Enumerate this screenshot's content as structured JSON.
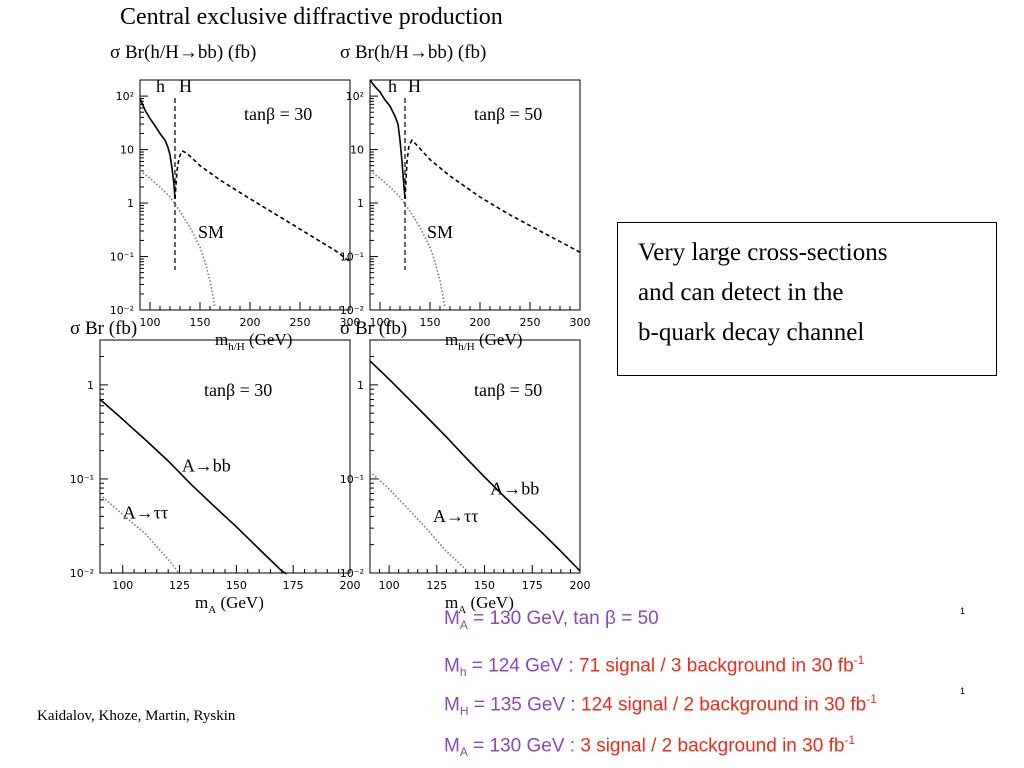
{
  "title": "Central exclusive diffractive production",
  "colors": {
    "axis": "#000000",
    "dotted": "#777777",
    "purple": "#8a48b8",
    "red": "#ee2a1a"
  },
  "note_box": {
    "lines": [
      "Very large cross-sections",
      "and can detect in the",
      "b-quark decay channel"
    ]
  },
  "authors": "Kaidalov, Khoze, Martin, Ryskin",
  "page_number": "1",
  "results": [
    {
      "sym": "M",
      "sub": "A",
      "purple_text": " = 130 GeV, tan β = 50",
      "red_text": "",
      "sup": ""
    },
    {
      "sym": "M",
      "sub": "h",
      "purple_text": " = 124 GeV : ",
      "red_text": "71 signal / 3 background in 30 fb",
      "sup": "-1"
    },
    {
      "sym": "M",
      "sub": "H",
      "purple_text": " = 135 GeV : ",
      "red_text": "124 signal / 2 background in 30 fb",
      "sup": "-1"
    },
    {
      "sym": "M",
      "sub": "A",
      "purple_text": " = 130 GeV : ",
      "red_text": "3 signal / 2 background in 30 fb",
      "sup": "-1"
    }
  ],
  "chart_data": [
    {
      "type": "line",
      "title": "σ Br(h/H→bb)  (fb)",
      "annotation": "tanβ = 30",
      "xlabel": {
        "main": "m",
        "sub": "h/H",
        "unit": "  (GeV)"
      },
      "xlim": [
        90,
        300
      ],
      "ylim": [
        0.01,
        200
      ],
      "yscale": "log",
      "xticks": [
        {
          "v": 100,
          "label": "100"
        },
        {
          "v": 150,
          "label": "150"
        },
        {
          "v": 200,
          "label": "200"
        },
        {
          "v": 250,
          "label": "250"
        },
        {
          "v": 300,
          "label": "300"
        }
      ],
      "yticks": [
        {
          "v": 100,
          "label": "10²"
        },
        {
          "v": 10,
          "label": "10"
        },
        {
          "v": 1,
          "label": "1"
        },
        {
          "v": 0.1,
          "label": "10⁻¹"
        },
        {
          "v": 0.01,
          "label": "10⁻²"
        }
      ],
      "vline": {
        "x": 125,
        "style": "dashed"
      },
      "labels": [
        {
          "text": "h",
          "x": 106,
          "y": 120
        },
        {
          "text": "H",
          "x": 129,
          "y": 120
        },
        {
          "text": "SM",
          "x": 148,
          "y": 0.22
        }
      ],
      "series": [
        {
          "name": "h",
          "style": "solid",
          "points": [
            [
              90,
              90
            ],
            [
              95,
              55
            ],
            [
              100,
              38
            ],
            [
              105,
              28
            ],
            [
              110,
              20
            ],
            [
              115,
              15
            ],
            [
              118,
              11
            ],
            [
              120,
              8
            ],
            [
              122,
              4.5
            ],
            [
              124,
              2.2
            ],
            [
              125,
              1.2
            ]
          ]
        },
        {
          "name": "H",
          "style": "dashed",
          "points": [
            [
              125,
              1.2
            ],
            [
              127,
              4
            ],
            [
              129,
              7
            ],
            [
              132,
              9.5
            ],
            [
              137,
              8.5
            ],
            [
              150,
              5
            ],
            [
              170,
              2.7
            ],
            [
              200,
              1.2
            ],
            [
              230,
              0.55
            ],
            [
              260,
              0.25
            ],
            [
              285,
              0.13
            ],
            [
              300,
              0.08
            ]
          ]
        },
        {
          "name": "SM",
          "style": "dotted",
          "points": [
            [
              90,
              4
            ],
            [
              100,
              2.9
            ],
            [
              110,
              2.0
            ],
            [
              120,
              1.3
            ],
            [
              130,
              0.7
            ],
            [
              140,
              0.35
            ],
            [
              150,
              0.15
            ],
            [
              155,
              0.08
            ],
            [
              160,
              0.035
            ],
            [
              163,
              0.018
            ],
            [
              165,
              0.011
            ]
          ]
        }
      ]
    },
    {
      "type": "line",
      "title": "σ Br(h/H→bb)  (fb)",
      "annotation": "tanβ = 50",
      "xlabel": {
        "main": "m",
        "sub": "h/H",
        "unit": "  (GeV)"
      },
      "xlim": [
        90,
        300
      ],
      "ylim": [
        0.01,
        200
      ],
      "yscale": "log",
      "xticks": [
        {
          "v": 100,
          "label": "100"
        },
        {
          "v": 150,
          "label": "150"
        },
        {
          "v": 200,
          "label": "200"
        },
        {
          "v": 250,
          "label": "250"
        },
        {
          "v": 300,
          "label": "300"
        }
      ],
      "yticks": [
        {
          "v": 100,
          "label": "10²"
        },
        {
          "v": 10,
          "label": "10"
        },
        {
          "v": 1,
          "label": "1"
        },
        {
          "v": 0.1,
          "label": "10⁻¹"
        },
        {
          "v": 0.01,
          "label": "10⁻²"
        }
      ],
      "vline": {
        "x": 125,
        "style": "dashed"
      },
      "labels": [
        {
          "text": "h",
          "x": 108,
          "y": 120
        },
        {
          "text": "H",
          "x": 128,
          "y": 120
        },
        {
          "text": "SM",
          "x": 147,
          "y": 0.22
        }
      ],
      "series": [
        {
          "name": "h",
          "style": "solid",
          "points": [
            [
              90,
              200
            ],
            [
              95,
              150
            ],
            [
              100,
              120
            ],
            [
              105,
              85
            ],
            [
              110,
              65
            ],
            [
              115,
              42
            ],
            [
              118,
              30
            ],
            [
              120,
              15
            ],
            [
              122,
              6
            ],
            [
              124,
              2
            ],
            [
              125,
              1.2
            ]
          ]
        },
        {
          "name": "H",
          "style": "dashed",
          "points": [
            [
              125,
              1.2
            ],
            [
              127,
              6
            ],
            [
              129,
              12
            ],
            [
              132,
              15
            ],
            [
              137,
              12
            ],
            [
              150,
              6.5
            ],
            [
              170,
              3.2
            ],
            [
              200,
              1.3
            ],
            [
              230,
              0.6
            ],
            [
              260,
              0.3
            ],
            [
              285,
              0.17
            ],
            [
              300,
              0.12
            ]
          ]
        },
        {
          "name": "SM",
          "style": "dotted",
          "points": [
            [
              90,
              4
            ],
            [
              100,
              2.9
            ],
            [
              110,
              2.0
            ],
            [
              120,
              1.3
            ],
            [
              130,
              0.7
            ],
            [
              140,
              0.35
            ],
            [
              150,
              0.15
            ],
            [
              155,
              0.08
            ],
            [
              160,
              0.035
            ],
            [
              163,
              0.018
            ],
            [
              165,
              0.011
            ]
          ]
        }
      ]
    },
    {
      "type": "line",
      "title": "σ Br  (fb)",
      "annotation": "tanβ = 30",
      "xlabel": {
        "main": "m",
        "sub": "A",
        "unit": " (GeV)"
      },
      "xlim": [
        90,
        200
      ],
      "ylim": [
        0.01,
        3
      ],
      "yscale": "log",
      "xticks": [
        {
          "v": 100,
          "label": "100"
        },
        {
          "v": 125,
          "label": "125"
        },
        {
          "v": 150,
          "label": "150"
        },
        {
          "v": 175,
          "label": "175"
        },
        {
          "v": 200,
          "label": "200"
        }
      ],
      "yticks": [
        {
          "v": 1,
          "label": "1"
        },
        {
          "v": 0.1,
          "label": "10⁻¹"
        },
        {
          "v": 0.01,
          "label": "10⁻²"
        }
      ],
      "labels": [
        {
          "text": "A→bb",
          "x": 126,
          "y": 0.12
        },
        {
          "text": "A→ττ",
          "x": 100,
          "y": 0.038
        }
      ],
      "series": [
        {
          "name": "A→bb",
          "style": "solid",
          "points": [
            [
              90,
              0.7
            ],
            [
              100,
              0.43
            ],
            [
              110,
              0.26
            ],
            [
              120,
              0.155
            ],
            [
              130,
              0.088
            ],
            [
              140,
              0.052
            ],
            [
              150,
              0.031
            ],
            [
              160,
              0.018
            ],
            [
              170,
              0.0105
            ],
            [
              172,
              0.0098
            ]
          ]
        },
        {
          "name": "A→ττ",
          "style": "dotted",
          "points": [
            [
              90,
              0.068
            ],
            [
              100,
              0.042
            ],
            [
              110,
              0.026
            ],
            [
              120,
              0.014
            ],
            [
              125,
              0.0098
            ]
          ]
        }
      ]
    },
    {
      "type": "line",
      "title": "σ Br  (fb)",
      "annotation": "tanβ = 50",
      "xlabel": {
        "main": "m",
        "sub": "A",
        "unit": " (GeV)"
      },
      "xlim": [
        90,
        200
      ],
      "ylim": [
        0.01,
        3
      ],
      "yscale": "log",
      "xticks": [
        {
          "v": 100,
          "label": "100"
        },
        {
          "v": 125,
          "label": "125"
        },
        {
          "v": 150,
          "label": "150"
        },
        {
          "v": 175,
          "label": "175"
        },
        {
          "v": 200,
          "label": "200"
        }
      ],
      "yticks": [
        {
          "v": 1,
          "label": "1"
        },
        {
          "v": 0.1,
          "label": "10⁻¹"
        },
        {
          "v": 0.01,
          "label": "10⁻²"
        }
      ],
      "labels": [
        {
          "text": "A→bb",
          "x": 153,
          "y": 0.068
        },
        {
          "text": "A→ττ",
          "x": 123,
          "y": 0.035
        }
      ],
      "series": [
        {
          "name": "A→bb",
          "style": "solid",
          "points": [
            [
              90,
              1.8
            ],
            [
              100,
              1.15
            ],
            [
              110,
              0.72
            ],
            [
              120,
              0.45
            ],
            [
              130,
              0.28
            ],
            [
              140,
              0.17
            ],
            [
              150,
              0.105
            ],
            [
              160,
              0.066
            ],
            [
              170,
              0.042
            ],
            [
              180,
              0.027
            ],
            [
              190,
              0.017
            ],
            [
              200,
              0.0105
            ]
          ]
        },
        {
          "name": "A→ττ",
          "style": "dotted",
          "points": [
            [
              90,
              0.12
            ],
            [
              100,
              0.078
            ],
            [
              110,
              0.048
            ],
            [
              120,
              0.029
            ],
            [
              130,
              0.017
            ],
            [
              140,
              0.011
            ],
            [
              142,
              0.0098
            ]
          ]
        }
      ]
    }
  ]
}
